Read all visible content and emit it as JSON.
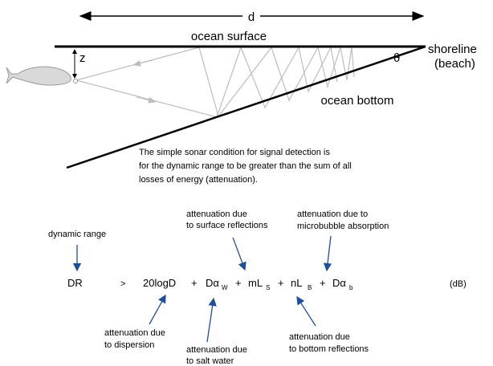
{
  "diagram": {
    "distance": "d",
    "surface": "ocean surface",
    "shoreline": [
      "shoreline",
      "(beach)"
    ],
    "depth": "z",
    "angle": "θ",
    "bottom": "ocean bottom"
  },
  "caption": [
    "The simple sonar condition for signal detection is",
    "for the dynamic range to be greater than the sum of all",
    "losses of energy (attenuation)."
  ],
  "equation": {
    "lhs": "DR",
    "relation": ">",
    "plus": "+",
    "units": "(dB)",
    "terms": [
      {
        "text": "20logD"
      },
      {
        "text": "Dα",
        "sub": "W"
      },
      {
        "text": "mL",
        "sub": "S"
      },
      {
        "text": "nL",
        "sub": "B"
      },
      {
        "text": "Dα",
        "sub": "b"
      }
    ]
  },
  "labels": [
    {
      "lines": [
        "dynamic range"
      ]
    },
    {
      "lines": [
        "attenuation due",
        "to surface reflections"
      ]
    },
    {
      "lines": [
        "attenuation due to",
        "microbubble absorption"
      ]
    },
    {
      "lines": [
        "attenuation due",
        "to dispersion"
      ]
    },
    {
      "lines": [
        "attenuation due",
        "to salt water"
      ]
    },
    {
      "lines": [
        "attenuation due",
        "to bottom reflections"
      ]
    }
  ]
}
